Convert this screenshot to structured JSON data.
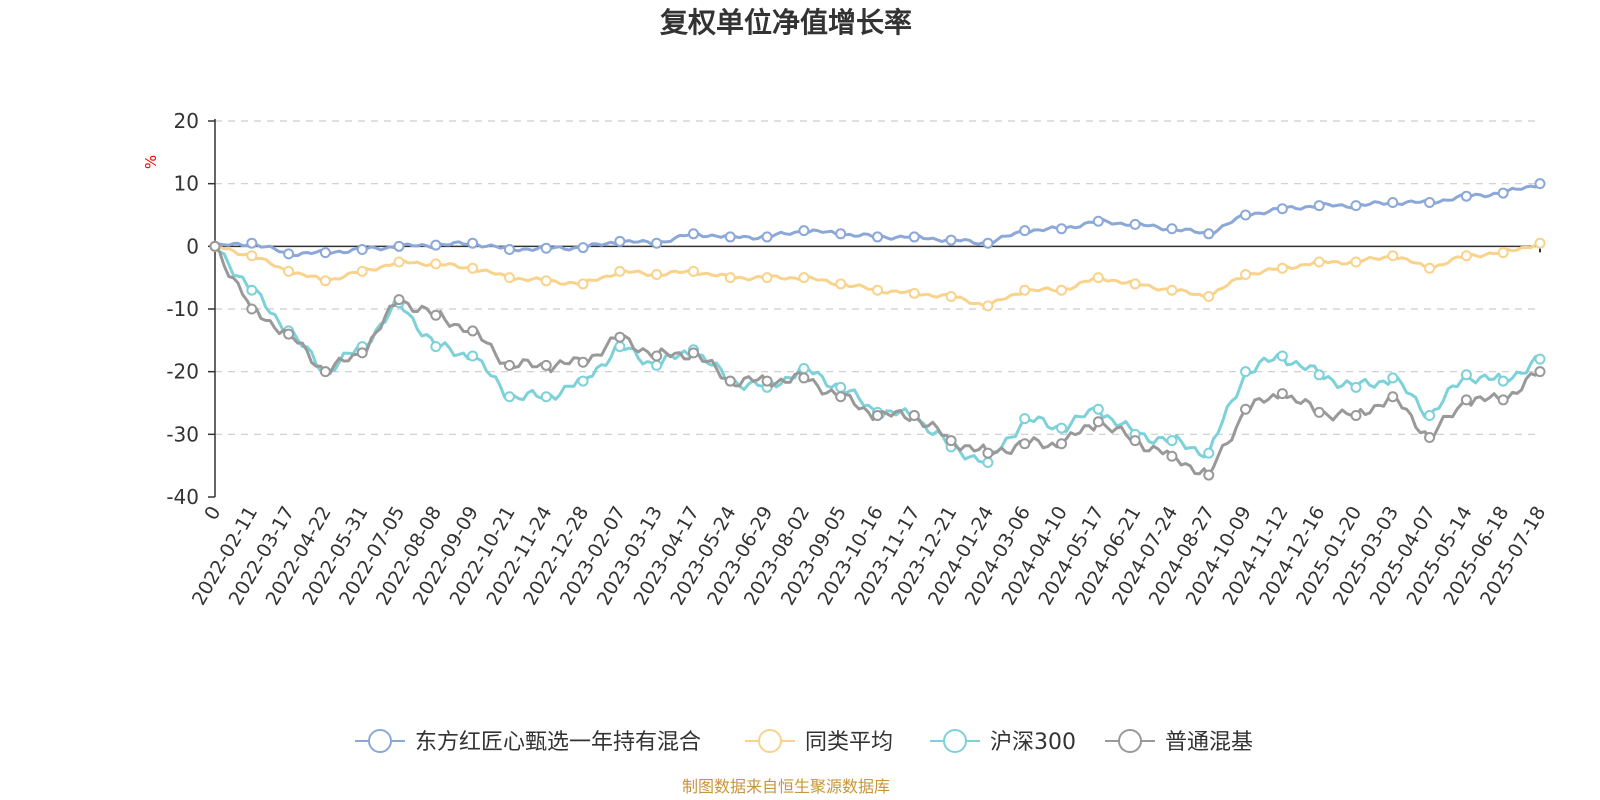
{
  "chart_data": {
    "type": "line",
    "title": "复权单位净值增长率",
    "ylabel": "%",
    "ylim": [
      -40,
      20
    ],
    "yticks": [
      20,
      10,
      0,
      -10,
      -20,
      -30,
      -40
    ],
    "x_tick_labels": [
      "0",
      "2022-02-11",
      "2022-03-17",
      "2022-04-22",
      "2022-05-31",
      "2022-07-05",
      "2022-08-08",
      "2022-09-09",
      "2022-10-21",
      "2022-11-24",
      "2022-12-28",
      "2023-02-07",
      "2023-03-13",
      "2023-04-17",
      "2023-05-24",
      "2023-06-29",
      "2023-08-02",
      "2023-09-05",
      "2023-10-16",
      "2023-11-17",
      "2023-12-21",
      "2024-01-24",
      "2024-03-06",
      "2024-04-10",
      "2024-05-17",
      "2024-06-21",
      "2024-07-24",
      "2024-08-27",
      "2024-10-09",
      "2024-11-12",
      "2024-12-16",
      "2025-01-20",
      "2025-03-03",
      "2025-04-07",
      "2025-05-14",
      "2025-06-18",
      "2025-07-18"
    ],
    "grid": true,
    "legend_position": "bottom",
    "series": [
      {
        "name": "东方红匠心甄选一年持有混合",
        "color": "#8ba8d8",
        "values": [
          0,
          0.5,
          -1.2,
          -1.0,
          -0.5,
          0,
          0.2,
          0.5,
          -0.5,
          -0.3,
          -0.2,
          0.8,
          0.5,
          2.0,
          1.5,
          1.5,
          2.5,
          2.0,
          1.5,
          1.5,
          1.0,
          0.5,
          2.5,
          2.8,
          4.0,
          3.5,
          2.8,
          2.0,
          5.0,
          6.0,
          6.5,
          6.5,
          7.0,
          7.0,
          8.0,
          8.5,
          10.0
        ]
      },
      {
        "name": "同类平均",
        "color": "#f9d38c",
        "values": [
          0,
          -1.5,
          -4.0,
          -5.5,
          -4.0,
          -2.5,
          -2.8,
          -3.5,
          -5.0,
          -5.5,
          -6.0,
          -4.0,
          -4.5,
          -4.0,
          -5.0,
          -5.0,
          -5.0,
          -6.0,
          -7.0,
          -7.5,
          -8.0,
          -9.5,
          -7.0,
          -7.0,
          -5.0,
          -6.0,
          -7.0,
          -8.0,
          -4.5,
          -3.5,
          -2.5,
          -2.5,
          -1.5,
          -3.5,
          -1.5,
          -1.0,
          0.5
        ]
      },
      {
        "name": "沪深300",
        "color": "#7dd1d9",
        "values": [
          0,
          -7.0,
          -13.5,
          -20.0,
          -16.0,
          -9.0,
          -16.0,
          -17.5,
          -24.0,
          -24.0,
          -21.5,
          -16.0,
          -19.0,
          -16.5,
          -21.5,
          -22.5,
          -19.5,
          -22.5,
          -26.5,
          -27.0,
          -32.0,
          -34.5,
          -27.5,
          -29.0,
          -26.0,
          -30.0,
          -31.0,
          -33.0,
          -20.0,
          -17.5,
          -20.5,
          -22.5,
          -21.0,
          -27.0,
          -20.5,
          -21.5,
          -18.0
        ]
      },
      {
        "name": "普通混基",
        "color": "#999999",
        "values": [
          0,
          -10.0,
          -14.0,
          -20.0,
          -17.0,
          -8.5,
          -11.0,
          -13.5,
          -19.0,
          -19.0,
          -18.5,
          -14.5,
          -17.5,
          -17.0,
          -21.5,
          -21.5,
          -21.0,
          -24.0,
          -27.0,
          -27.0,
          -31.0,
          -33.0,
          -31.5,
          -31.5,
          -28.0,
          -31.0,
          -33.5,
          -36.5,
          -26.0,
          -23.5,
          -26.5,
          -27.0,
          -24.0,
          -30.5,
          -24.5,
          -24.5,
          -20.0
        ]
      }
    ]
  },
  "source_note": "制图数据来自恒生聚源数据库"
}
